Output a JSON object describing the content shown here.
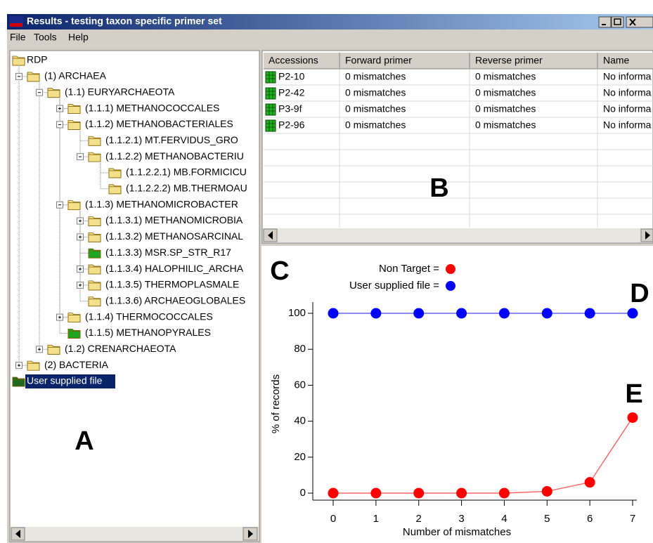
{
  "window": {
    "title": "Results - testing taxon specific primer set"
  },
  "menu": [
    "File",
    "Tools",
    "Help"
  ],
  "tree": {
    "items": [
      {
        "label": "RDP",
        "depth": 0,
        "toggle": "none",
        "icon": "folder"
      },
      {
        "label": "(1) ARCHAEA",
        "depth": 1,
        "toggle": "minus",
        "icon": "folder"
      },
      {
        "label": "(1.1) EURYARCHAEOTA",
        "depth": 2,
        "toggle": "minus",
        "icon": "folder"
      },
      {
        "label": "(1.1.1) METHANOCOCCALES",
        "depth": 3,
        "toggle": "plus",
        "icon": "folder"
      },
      {
        "label": "(1.1.2) METHANOBACTERIALES",
        "depth": 3,
        "toggle": "minus",
        "icon": "folder"
      },
      {
        "label": "(1.1.2.1) MT.FERVIDUS_GRO",
        "depth": 4,
        "toggle": "none",
        "icon": "folder"
      },
      {
        "label": "(1.1.2.2) METHANOBACTERIU",
        "depth": 4,
        "toggle": "minus",
        "icon": "folder"
      },
      {
        "label": "(1.1.2.2.1) MB.FORMICICU",
        "depth": 5,
        "toggle": "none",
        "icon": "folder"
      },
      {
        "label": "(1.1.2.2.2) MB.THERMOAU",
        "depth": 5,
        "toggle": "none",
        "icon": "folder"
      },
      {
        "label": "(1.1.3) METHANOMICROBACTER",
        "depth": 3,
        "toggle": "minus",
        "icon": "folder"
      },
      {
        "label": "(1.1.3.1) METHANOMICROBIA",
        "depth": 4,
        "toggle": "plus",
        "icon": "folder"
      },
      {
        "label": "(1.1.3.2) METHANOSARCINAL",
        "depth": 4,
        "toggle": "plus",
        "icon": "folder"
      },
      {
        "label": "(1.1.3.3) MSR.SP_STR_R17",
        "depth": 4,
        "toggle": "none",
        "icon": "green"
      },
      {
        "label": "(1.1.3.4) HALOPHILIC_ARCHA",
        "depth": 4,
        "toggle": "plus",
        "icon": "folder"
      },
      {
        "label": "(1.1.3.5) THERMOPLASMALE",
        "depth": 4,
        "toggle": "plus",
        "icon": "folder"
      },
      {
        "label": "(1.1.3.6) ARCHAEOGLOBALES",
        "depth": 4,
        "toggle": "none",
        "icon": "folder"
      },
      {
        "label": "(1.1.4) THERMOCOCCALES",
        "depth": 3,
        "toggle": "plus",
        "icon": "folder"
      },
      {
        "label": "(1.1.5) METHANOPYRALES",
        "depth": 3,
        "toggle": "none",
        "icon": "green"
      },
      {
        "label": "(1.2) CRENARCHAEOTA",
        "depth": 2,
        "toggle": "plus",
        "icon": "folder"
      },
      {
        "label": "(2) BACTERIA",
        "depth": 1,
        "toggle": "plus",
        "icon": "folder"
      },
      {
        "label": "User supplied file",
        "depth": 0,
        "toggle": "none",
        "icon": "open",
        "selected": true
      }
    ]
  },
  "table": {
    "columns": [
      "Accessions",
      "Forward primer",
      "Reverse primer",
      "Name"
    ],
    "rows": [
      [
        "P2-10",
        "0 mismatches",
        "0 mismatches",
        "No informa"
      ],
      [
        "P2-42",
        "0 mismatches",
        "0 mismatches",
        "No informa"
      ],
      [
        "P3-9f",
        "0 mismatches",
        "0 mismatches",
        "No informa"
      ],
      [
        "P2-96",
        "0 mismatches",
        "0 mismatches",
        "No informa"
      ]
    ]
  },
  "labels": [
    "A",
    "B",
    "C",
    "D",
    "E"
  ],
  "chart_data": {
    "type": "line",
    "x_label": "Number of mismatches",
    "y_label": "% of records",
    "x": [
      0,
      1,
      2,
      3,
      4,
      5,
      6,
      7
    ],
    "series": [
      {
        "name": "Non Target =",
        "color": "#ff0000",
        "values": [
          0,
          0,
          0,
          0,
          0,
          1,
          6,
          42
        ]
      },
      {
        "name": "User supplied file =",
        "color": "#0000ff",
        "values": [
          100,
          100,
          100,
          100,
          100,
          100,
          100,
          100
        ]
      }
    ],
    "xlim": [
      0,
      7
    ],
    "ylim": [
      0,
      100
    ],
    "xticks": [
      0,
      1,
      2,
      3,
      4,
      5,
      6,
      7
    ],
    "yticks": [
      0,
      20,
      40,
      60,
      80,
      100
    ]
  }
}
